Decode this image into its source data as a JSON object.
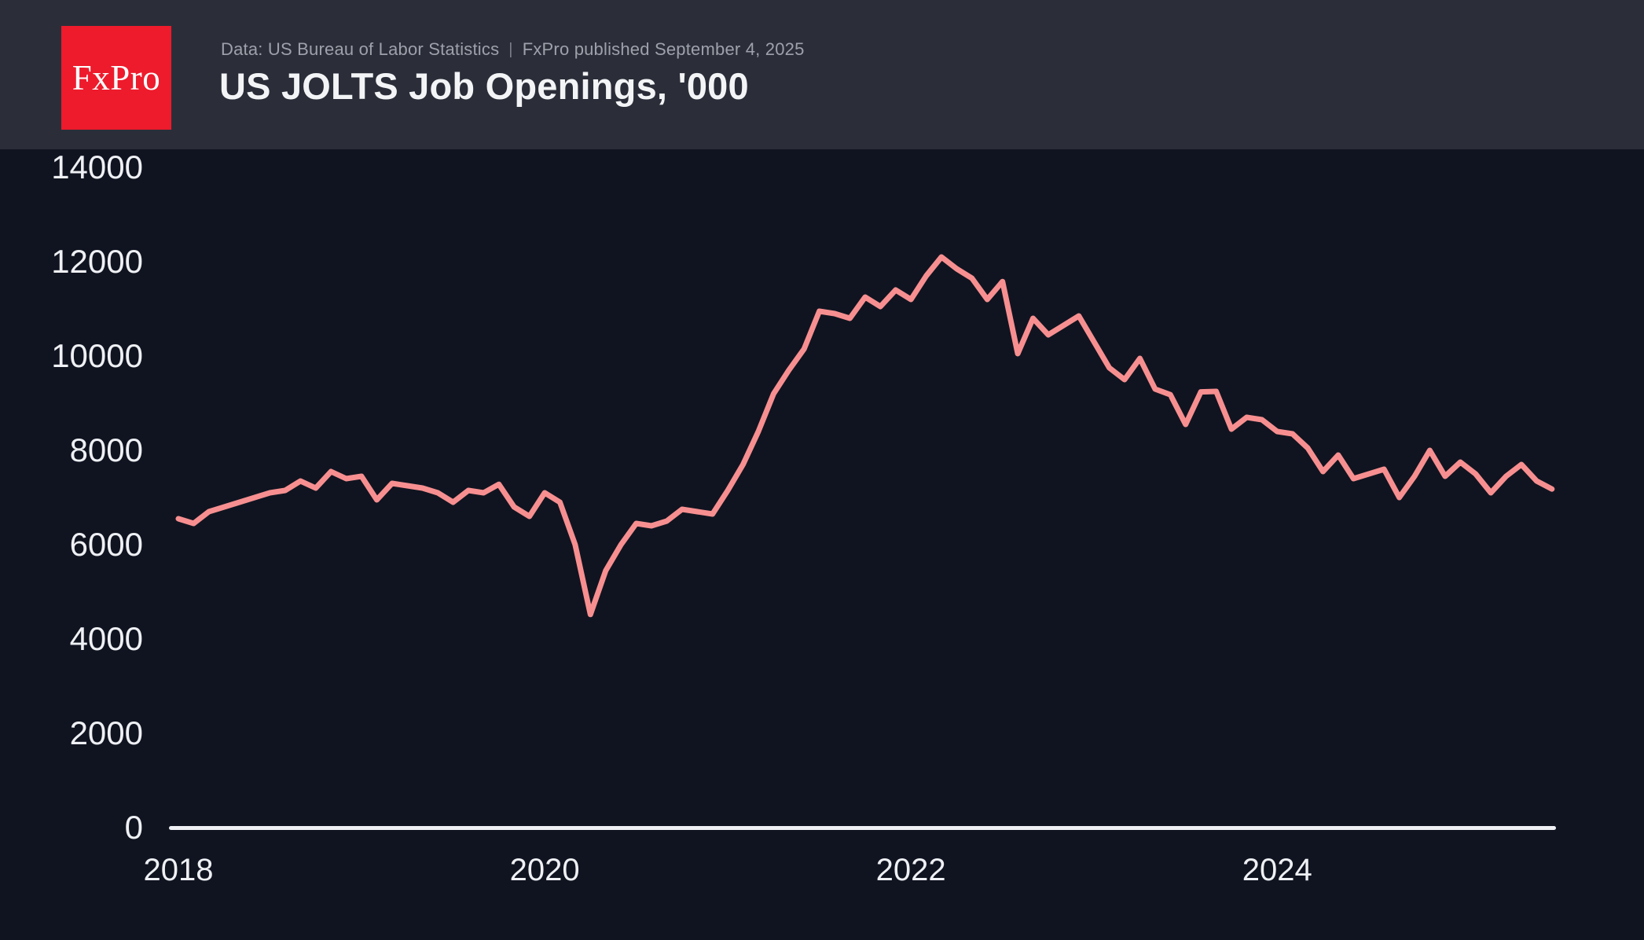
{
  "header": {
    "logo_text": "FxPro",
    "source_text": "Data: US Bureau of Labor Statistics",
    "separator": "|",
    "published_text": "FxPro published September 4, 2025",
    "title": "US JOLTS Job Openings, '000"
  },
  "colors": {
    "background": "#101420",
    "header_background": "#2b2e39",
    "logo_red": "#ed1b2c",
    "line": "#f78f90",
    "axis_text": "#eef0f4",
    "subtitle_text": "#9ea1aa"
  },
  "chart_data": {
    "type": "line",
    "title": "US JOLTS Job Openings, '000",
    "unit": "thousands of job openings",
    "frequency": "monthly",
    "x_start": "2018-01",
    "x_end": "2025-07",
    "xlabel": "",
    "ylabel": "",
    "ylim": [
      0,
      14000
    ],
    "grid": false,
    "legend": false,
    "y_ticks": [
      0,
      2000,
      4000,
      6000,
      8000,
      10000,
      12000,
      14000
    ],
    "x_ticks": [
      2018,
      2020,
      2022,
      2024
    ],
    "values": [
      6550,
      6450,
      6700,
      6800,
      6900,
      7000,
      7100,
      7150,
      7350,
      7200,
      7550,
      7400,
      7450,
      6950,
      7300,
      7250,
      7200,
      7100,
      6900,
      7150,
      7100,
      7280,
      6800,
      6600,
      7100,
      6900,
      6000,
      4520,
      5450,
      6000,
      6450,
      6400,
      6500,
      6750,
      6700,
      6650,
      7150,
      7700,
      8400,
      9200,
      9700,
      10150,
      10950,
      10900,
      10800,
      11250,
      11050,
      11400,
      11200,
      11700,
      12100,
      11850,
      11650,
      11200,
      11580,
      10050,
      10800,
      10450,
      10650,
      10850,
      10300,
      9750,
      9500,
      9950,
      9300,
      9180,
      8550,
      9240,
      9250,
      8450,
      8700,
      8650,
      8400,
      8350,
      8050,
      7550,
      7900,
      7400,
      7500,
      7600,
      7000,
      7450,
      8000,
      7450,
      7750,
      7500,
      7100,
      7450,
      7700,
      7350,
      7180
    ]
  }
}
